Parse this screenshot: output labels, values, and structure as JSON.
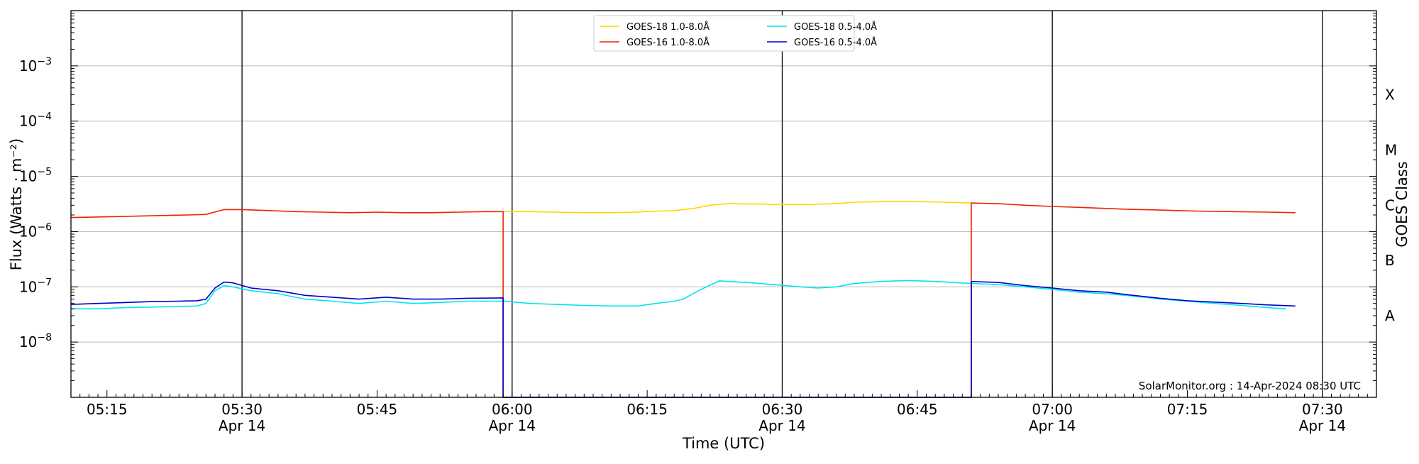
{
  "chart_data": {
    "type": "line",
    "title": "",
    "xlabel": "Time (UTC)",
    "ylabel": "Flux (Watts · m⁻²)",
    "ylabel_right": "GOES Class",
    "y_scale": "log",
    "ylim": [
      1e-09,
      0.01
    ],
    "xlim": [
      "2024-04-14 05:11",
      "2024-04-14 07:36"
    ],
    "grid": "horizontal",
    "legend_position": "top-center",
    "y_ticks": [
      {
        "value": 1e-08,
        "base": "10",
        "exp": "−8"
      },
      {
        "value": 1e-07,
        "base": "10",
        "exp": "−7"
      },
      {
        "value": 1e-06,
        "base": "10",
        "exp": "−6"
      },
      {
        "value": 1e-05,
        "base": "10",
        "exp": "−5"
      },
      {
        "value": 0.0001,
        "base": "10",
        "exp": "−4"
      },
      {
        "value": 0.001,
        "base": "10",
        "exp": "−3"
      }
    ],
    "x_ticks": [
      {
        "time": "05:15",
        "label": "05:15",
        "sublabel": ""
      },
      {
        "time": "05:30",
        "label": "05:30",
        "sublabel": "Apr 14"
      },
      {
        "time": "05:45",
        "label": "05:45",
        "sublabel": ""
      },
      {
        "time": "06:00",
        "label": "06:00",
        "sublabel": "Apr 14"
      },
      {
        "time": "06:15",
        "label": "06:15",
        "sublabel": ""
      },
      {
        "time": "06:30",
        "label": "06:30",
        "sublabel": "Apr 14"
      },
      {
        "time": "06:45",
        "label": "06:45",
        "sublabel": ""
      },
      {
        "time": "07:00",
        "label": "07:00",
        "sublabel": "Apr 14"
      },
      {
        "time": "07:15",
        "label": "07:15",
        "sublabel": ""
      },
      {
        "time": "07:30",
        "label": "07:30",
        "sublabel": "Apr 14"
      }
    ],
    "vertical_lines": [
      "05:30",
      "06:00",
      "06:30",
      "07:00",
      "07:30"
    ],
    "goes_classes": [
      {
        "label": "A",
        "flux": 3e-08
      },
      {
        "label": "B",
        "flux": 3e-07
      },
      {
        "label": "C",
        "flux": 3e-06
      },
      {
        "label": "M",
        "flux": 3e-05
      },
      {
        "label": "X",
        "flux": 0.0003
      }
    ],
    "series": [
      {
        "name": "GOES-18 1.0-8.0Å",
        "color": "#ffd700",
        "points": [
          [
            "05:59",
            2.3e-06
          ],
          [
            "06:02",
            2.3e-06
          ],
          [
            "06:05",
            2.25e-06
          ],
          [
            "06:08",
            2.2e-06
          ],
          [
            "06:11",
            2.2e-06
          ],
          [
            "06:14",
            2.25e-06
          ],
          [
            "06:16",
            2.35e-06
          ],
          [
            "06:18",
            2.4e-06
          ],
          [
            "06:20",
            2.6e-06
          ],
          [
            "06:22",
            3e-06
          ],
          [
            "06:24",
            3.2e-06
          ],
          [
            "06:27",
            3.15e-06
          ],
          [
            "06:30",
            3.1e-06
          ],
          [
            "06:33",
            3.1e-06
          ],
          [
            "06:36",
            3.2e-06
          ],
          [
            "06:38",
            3.4e-06
          ],
          [
            "06:42",
            3.5e-06
          ],
          [
            "06:45",
            3.5e-06
          ],
          [
            "06:48",
            3.4e-06
          ],
          [
            "06:51",
            3.3e-06
          ]
        ]
      },
      {
        "name": "GOES-16 1.0-8.0Å",
        "color": "#ee2200",
        "points": [
          [
            "05:11",
            1.8e-06
          ],
          [
            "05:15",
            1.85e-06
          ],
          [
            "05:18",
            1.9e-06
          ],
          [
            "05:21",
            1.95e-06
          ],
          [
            "05:24",
            2e-06
          ],
          [
            "05:26",
            2.05e-06
          ],
          [
            "05:28",
            2.5e-06
          ],
          [
            "05:30",
            2.5e-06
          ],
          [
            "05:33",
            2.4e-06
          ],
          [
            "05:36",
            2.3e-06
          ],
          [
            "05:39",
            2.25e-06
          ],
          [
            "05:42",
            2.2e-06
          ],
          [
            "05:45",
            2.25e-06
          ],
          [
            "05:48",
            2.2e-06
          ],
          [
            "05:51",
            2.2e-06
          ],
          [
            "05:54",
            2.25e-06
          ],
          [
            "05:57",
            2.3e-06
          ],
          [
            "05:59",
            2.3e-06
          ],
          [
            "05:59",
            1e-09
          ],
          [
            "06:51",
            1e-09
          ],
          [
            "06:51",
            3.3e-06
          ],
          [
            "06:54",
            3.2e-06
          ],
          [
            "06:57",
            3e-06
          ],
          [
            "07:00",
            2.85e-06
          ],
          [
            "07:04",
            2.7e-06
          ],
          [
            "07:08",
            2.55e-06
          ],
          [
            "07:12",
            2.45e-06
          ],
          [
            "07:16",
            2.35e-06
          ],
          [
            "07:20",
            2.3e-06
          ],
          [
            "07:24",
            2.25e-06
          ],
          [
            "07:27",
            2.2e-06
          ]
        ]
      },
      {
        "name": "GOES-18 0.5-4.0Å",
        "color": "#00e5ee",
        "points": [
          [
            "05:11",
            4e-08
          ],
          [
            "05:14",
            4e-08
          ],
          [
            "05:17",
            4.2e-08
          ],
          [
            "05:20",
            4.3e-08
          ],
          [
            "05:23",
            4.4e-08
          ],
          [
            "05:25",
            4.5e-08
          ],
          [
            "05:26",
            5e-08
          ],
          [
            "05:27",
            8.5e-08
          ],
          [
            "05:28",
            1.05e-07
          ],
          [
            "05:29",
            1e-07
          ],
          [
            "05:31",
            8.5e-08
          ],
          [
            "05:34",
            7.5e-08
          ],
          [
            "05:37",
            6e-08
          ],
          [
            "05:40",
            5.5e-08
          ],
          [
            "05:43",
            5e-08
          ],
          [
            "05:46",
            5.5e-08
          ],
          [
            "05:49",
            5e-08
          ],
          [
            "05:52",
            5.2e-08
          ],
          [
            "05:55",
            5.5e-08
          ],
          [
            "05:59",
            5.5e-08
          ],
          [
            "06:02",
            5e-08
          ],
          [
            "06:05",
            4.8e-08
          ],
          [
            "06:08",
            4.6e-08
          ],
          [
            "06:11",
            4.5e-08
          ],
          [
            "06:14",
            4.5e-08
          ],
          [
            "06:16",
            5e-08
          ],
          [
            "06:18",
            5.5e-08
          ],
          [
            "06:19",
            6e-08
          ],
          [
            "06:21",
            9e-08
          ],
          [
            "06:23",
            1.28e-07
          ],
          [
            "06:26",
            1.2e-07
          ],
          [
            "06:29",
            1.1e-07
          ],
          [
            "06:32",
            1e-07
          ],
          [
            "06:34",
            9.5e-08
          ],
          [
            "06:36",
            1e-07
          ],
          [
            "06:38",
            1.15e-07
          ],
          [
            "06:41",
            1.25e-07
          ],
          [
            "06:44",
            1.3e-07
          ],
          [
            "06:47",
            1.25e-07
          ],
          [
            "06:51",
            1.15e-07
          ],
          [
            "06:54",
            1.1e-07
          ],
          [
            "06:57",
            1e-07
          ],
          [
            "07:00",
            9e-08
          ],
          [
            "07:03",
            8e-08
          ],
          [
            "07:06",
            7.5e-08
          ],
          [
            "07:09",
            6.8e-08
          ],
          [
            "07:12",
            6e-08
          ],
          [
            "07:15",
            5.5e-08
          ],
          [
            "07:18",
            5e-08
          ],
          [
            "07:21",
            4.6e-08
          ],
          [
            "07:24",
            4.2e-08
          ],
          [
            "07:26",
            4e-08
          ]
        ]
      },
      {
        "name": "GOES-16 0.5-4.0Å",
        "color": "#0000cc",
        "points": [
          [
            "05:11",
            4.8e-08
          ],
          [
            "05:14",
            5e-08
          ],
          [
            "05:17",
            5.2e-08
          ],
          [
            "05:20",
            5.4e-08
          ],
          [
            "05:23",
            5.5e-08
          ],
          [
            "05:25",
            5.6e-08
          ],
          [
            "05:26",
            6e-08
          ],
          [
            "05:27",
            9.5e-08
          ],
          [
            "05:28",
            1.22e-07
          ],
          [
            "05:29",
            1.18e-07
          ],
          [
            "05:31",
            9.5e-08
          ],
          [
            "05:34",
            8.5e-08
          ],
          [
            "05:37",
            7e-08
          ],
          [
            "05:40",
            6.5e-08
          ],
          [
            "05:43",
            6e-08
          ],
          [
            "05:46",
            6.5e-08
          ],
          [
            "05:49",
            6e-08
          ],
          [
            "05:52",
            6e-08
          ],
          [
            "05:55",
            6.2e-08
          ],
          [
            "05:59",
            6.3e-08
          ],
          [
            "05:59",
            1e-09
          ],
          [
            "06:51",
            1e-09
          ],
          [
            "06:51",
            1.25e-07
          ],
          [
            "06:54",
            1.2e-07
          ],
          [
            "06:57",
            1.05e-07
          ],
          [
            "07:00",
            9.5e-08
          ],
          [
            "07:03",
            8.5e-08
          ],
          [
            "07:06",
            8e-08
          ],
          [
            "07:09",
            7e-08
          ],
          [
            "07:12",
            6.2e-08
          ],
          [
            "07:15",
            5.6e-08
          ],
          [
            "07:18",
            5.3e-08
          ],
          [
            "07:21",
            5e-08
          ],
          [
            "07:24",
            4.7e-08
          ],
          [
            "07:27",
            4.5e-08
          ]
        ]
      }
    ],
    "legend_order": [
      "GOES-18 1.0-8.0Å",
      "GOES-18 0.5-4.0Å",
      "GOES-16 1.0-8.0Å",
      "GOES-16 0.5-4.0Å"
    ],
    "credit": "SolarMonitor.org : 14-Apr-2024 08:30 UTC"
  }
}
